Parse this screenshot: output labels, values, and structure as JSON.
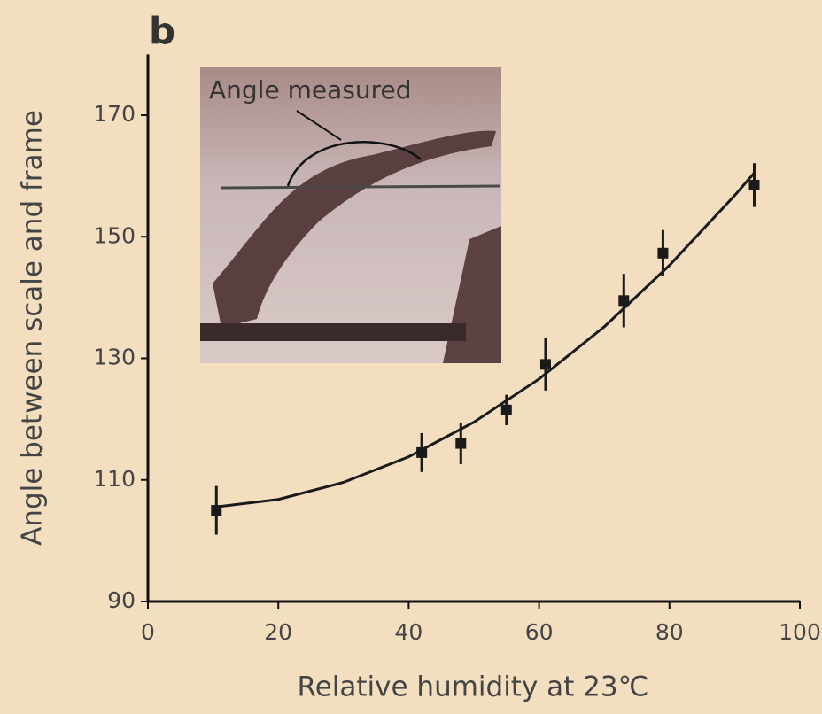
{
  "chart_data": {
    "type": "scatter",
    "panel_label": "b",
    "inset_label": "Angle measured",
    "xlabel": "Relative humidity at 23℃",
    "ylabel": "Angle between scale and frame",
    "x": [
      10.5,
      42,
      48,
      55,
      61,
      73,
      79,
      93
    ],
    "values": [
      105,
      114.5,
      116,
      121.5,
      129,
      139.5,
      147.3,
      158.5
    ],
    "errors": [
      4,
      3.2,
      3.4,
      2.5,
      4.3,
      4.4,
      3.8,
      3.6
    ],
    "color": "#1a1a1a",
    "fit": {
      "x": [
        10,
        20,
        30,
        40,
        50,
        60,
        70,
        80,
        90,
        93
      ],
      "values": [
        105.5,
        106.8,
        109.6,
        113.8,
        119.5,
        126.6,
        135.2,
        145.3,
        156.8,
        160.5
      ]
    },
    "xlim": [
      0,
      100
    ],
    "xticks": [
      0,
      20,
      40,
      60,
      80,
      100
    ],
    "ylim": [
      90,
      180
    ],
    "yticks": [
      90,
      110,
      130,
      150,
      170
    ]
  }
}
